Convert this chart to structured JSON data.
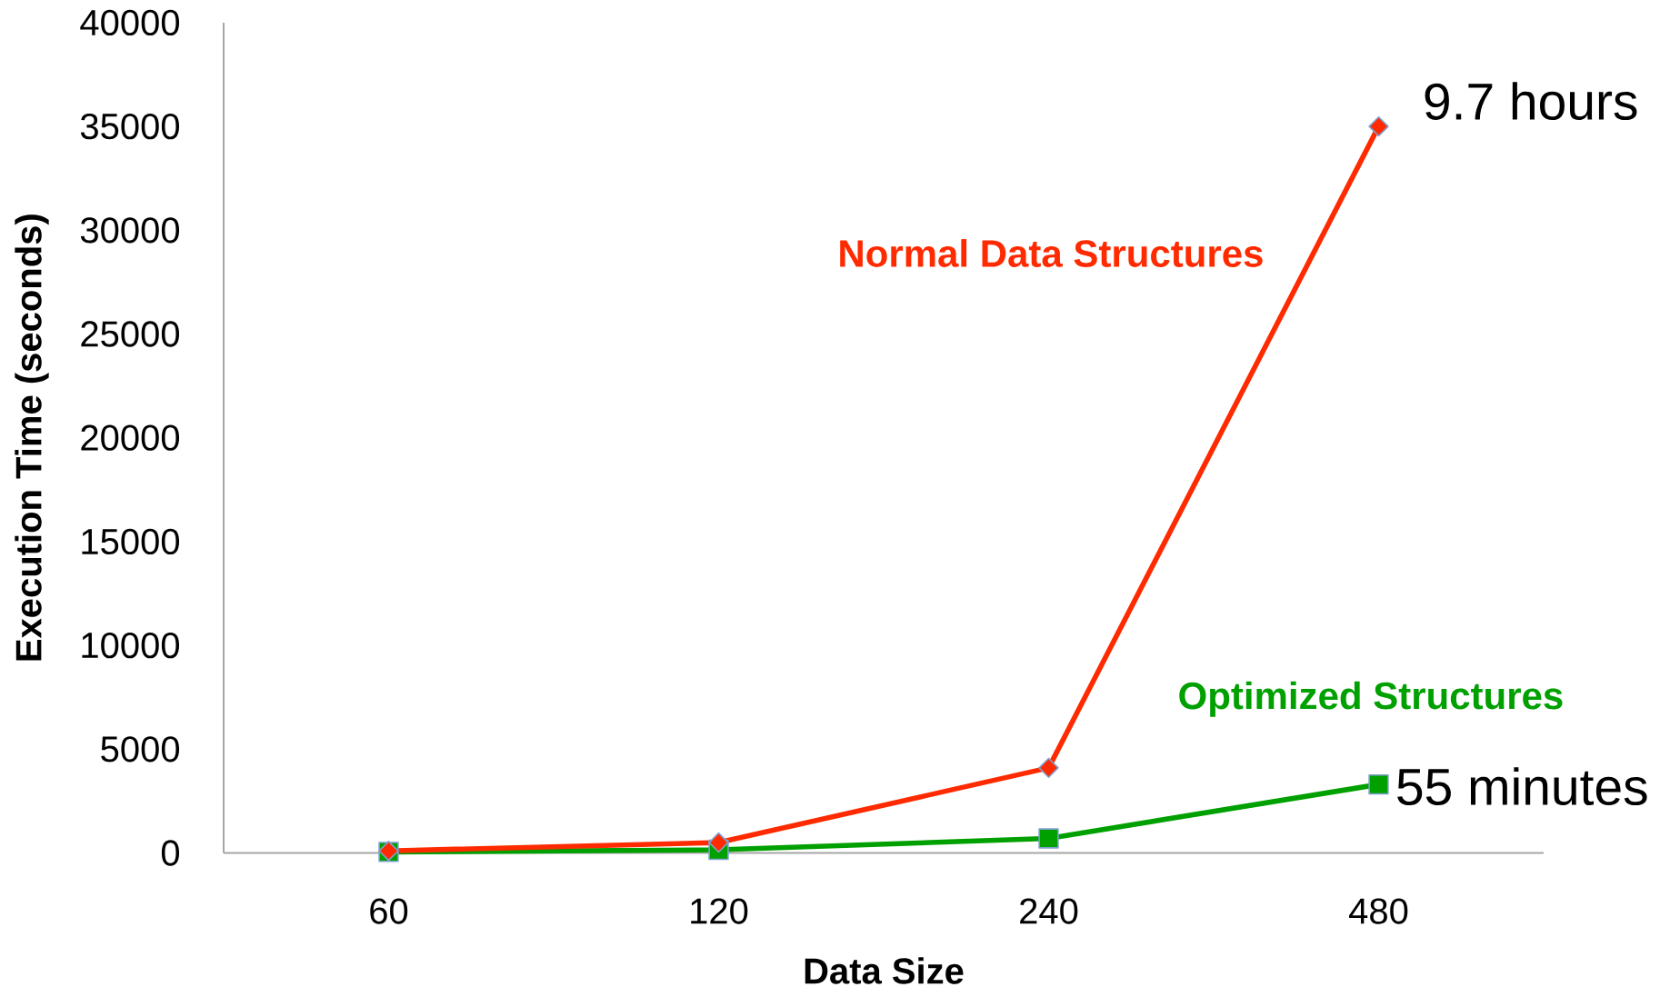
{
  "chart_data": {
    "type": "line",
    "xlabel": "Data Size",
    "ylabel": "Execution Time (seconds)",
    "categories": [
      "60",
      "120",
      "240",
      "480"
    ],
    "ylim": [
      0,
      40000
    ],
    "yticks": [
      0,
      5000,
      10000,
      15000,
      20000,
      25000,
      30000,
      35000,
      40000
    ],
    "series": [
      {
        "name": "Normal Data Structures",
        "color": "#ff2a00",
        "marker": "diamond",
        "values": [
          100,
          500,
          4100,
          35000
        ]
      },
      {
        "name": "Optimized Structures",
        "color": "#00a000",
        "marker": "square",
        "values": [
          50,
          150,
          700,
          3300
        ]
      }
    ],
    "annotations": [
      {
        "text": "9.7 hours",
        "x": "480",
        "y": 35000
      },
      {
        "text": "55 minutes",
        "x": "480",
        "y": 3300
      }
    ]
  }
}
